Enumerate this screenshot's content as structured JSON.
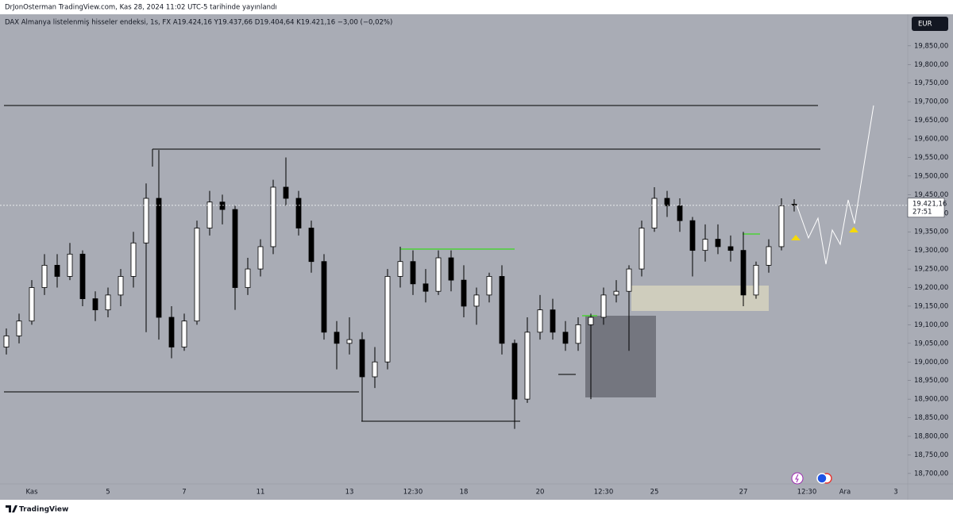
{
  "chart_data": {
    "type": "candlestick",
    "title": "DrJonOsterman TradingView.com, Kas 28, 2024 11:02 UTC-5 tarihinde yayınlandı",
    "subtitle": "DAX Almanya listelenmiş hisseler endeksi, 1s, FX  A19.424,16  Y19.437,66  D19.404,64  K19.421,16  −3,00 (−0,02%)",
    "currency": "EUR",
    "last_price_label": "19.421,16",
    "countdown": "27:51",
    "brand": "TradingView",
    "colors": {
      "up": "#ffffff",
      "down": "#000000",
      "wick": "#000000",
      "background": "#a9acb5"
    },
    "categories": [
      null,
      null,
      "Kas",
      null,
      null,
      null,
      null,
      null,
      "5",
      null,
      null,
      null,
      null,
      null,
      "7",
      null,
      null,
      null,
      null,
      null,
      "11",
      null,
      null,
      null,
      null,
      null,
      null,
      "13",
      null,
      null,
      null,
      null,
      "12:30",
      null,
      null,
      null,
      "18",
      null,
      null,
      null,
      null,
      null,
      "20",
      null,
      null,
      null,
      null,
      "12:30",
      null,
      null,
      null,
      "25",
      null,
      null,
      null,
      null,
      null,
      null,
      "27",
      null,
      null,
      null,
      null,
      "12:30",
      null,
      null,
      "Ara",
      null,
      null,
      null,
      "3",
      null
    ],
    "open": [
      19040,
      19070,
      19110,
      19200,
      19260,
      19230,
      19290,
      19170,
      19140,
      19180,
      19230,
      19320,
      19440,
      19120,
      19040,
      19110,
      19360,
      19430,
      19410,
      19200,
      19250,
      19310,
      19470,
      19440,
      19360,
      19270,
      19080,
      19050,
      19060,
      18960,
      19000,
      19230,
      19270,
      19210,
      19190,
      19280,
      19220,
      19150,
      19180,
      19230,
      19050,
      18900,
      19080,
      19140,
      19080,
      19050,
      19100,
      19120,
      19180,
      19190,
      19250,
      19360,
      19440,
      19420,
      19380,
      19300,
      19330,
      19310,
      19300,
      19180,
      19260,
      19310,
      19424.16,
      null,
      null,
      null,
      null,
      null,
      null,
      null,
      null,
      null
    ],
    "high": [
      19090,
      19130,
      19220,
      19290,
      19290,
      19320,
      19300,
      19190,
      19200,
      19250,
      19350,
      19480,
      19570,
      19150,
      19130,
      19380,
      19460,
      19450,
      19420,
      19280,
      19330,
      19490,
      19550,
      19460,
      19380,
      19290,
      19110,
      19120,
      19080,
      19040,
      19250,
      19310,
      19300,
      19250,
      19300,
      19300,
      19260,
      19200,
      19240,
      19260,
      19060,
      19120,
      19180,
      19170,
      19110,
      19120,
      19130,
      19200,
      19220,
      19260,
      19380,
      19470,
      19460,
      19440,
      19390,
      19370,
      19370,
      19340,
      19350,
      19270,
      19330,
      19440,
      19437.66,
      null,
      null,
      null,
      null,
      null,
      null,
      null,
      null,
      null
    ],
    "low": [
      19020,
      19050,
      19100,
      19180,
      19200,
      19220,
      19150,
      19110,
      19120,
      19150,
      19200,
      19080,
      19060,
      19010,
      19030,
      19100,
      19340,
      19370,
      19140,
      19180,
      19230,
      19290,
      19420,
      19340,
      19240,
      19060,
      18980,
      19020,
      18840,
      18930,
      18980,
      19200,
      19180,
      19160,
      19180,
      19190,
      19120,
      19100,
      19160,
      19020,
      18820,
      18890,
      19060,
      19060,
      19030,
      19030,
      18900,
      19100,
      19160,
      19030,
      19230,
      19350,
      19390,
      19350,
      19230,
      19270,
      19290,
      19270,
      19150,
      19170,
      19240,
      19300,
      19404.64,
      null,
      null,
      null,
      null,
      null,
      null,
      null,
      null,
      null
    ],
    "close": [
      19070,
      19110,
      19200,
      19260,
      19230,
      19290,
      19170,
      19140,
      19180,
      19230,
      19320,
      19440,
      19120,
      19040,
      19110,
      19360,
      19430,
      19410,
      19200,
      19250,
      19310,
      19470,
      19440,
      19360,
      19270,
      19080,
      19050,
      19060,
      18960,
      19000,
      19230,
      19270,
      19210,
      19190,
      19280,
      19220,
      19150,
      19180,
      19230,
      19050,
      18900,
      19080,
      19140,
      19080,
      19050,
      19100,
      19120,
      19180,
      19190,
      19250,
      19360,
      19440,
      19420,
      19380,
      19300,
      19330,
      19310,
      19300,
      19180,
      19260,
      19310,
      19420,
      19421.16,
      null,
      null,
      null,
      null,
      null,
      null,
      null,
      null,
      null
    ],
    "ylim": [
      18672,
      19935
    ],
    "yticks": [
      {
        "value": 18700,
        "label": "18,700,00"
      },
      {
        "value": 18750,
        "label": "18,750,00"
      },
      {
        "value": 18800,
        "label": "18,800,00"
      },
      {
        "value": 18850,
        "label": "18,850,00"
      },
      {
        "value": 18900,
        "label": "18,900,00"
      },
      {
        "value": 18950,
        "label": "18,950,00"
      },
      {
        "value": 19000,
        "label": "19,000,00"
      },
      {
        "value": 19050,
        "label": "19,050,00"
      },
      {
        "value": 19100,
        "label": "19,100,00"
      },
      {
        "value": 19150,
        "label": "19,150,00"
      },
      {
        "value": 19200,
        "label": "19,200,00"
      },
      {
        "value": 19250,
        "label": "19,250,00"
      },
      {
        "value": 19300,
        "label": "19,300,00"
      },
      {
        "value": 19350,
        "label": "19,350,00"
      },
      {
        "value": 19400,
        "label": "19,400,00"
      },
      {
        "value": 19450,
        "label": "19,450,00"
      },
      {
        "value": 19500,
        "label": "19,500,00"
      },
      {
        "value": 19550,
        "label": "19,550,00"
      },
      {
        "value": 19600,
        "label": "19,600,00"
      },
      {
        "value": 19650,
        "label": "19,650,00"
      },
      {
        "value": 19700,
        "label": "19,700,00"
      },
      {
        "value": 19750,
        "label": "19,750,00"
      },
      {
        "value": 19800,
        "label": "19,800,00"
      },
      {
        "value": 19850,
        "label": "19,850,00"
      }
    ],
    "grid": false
  }
}
